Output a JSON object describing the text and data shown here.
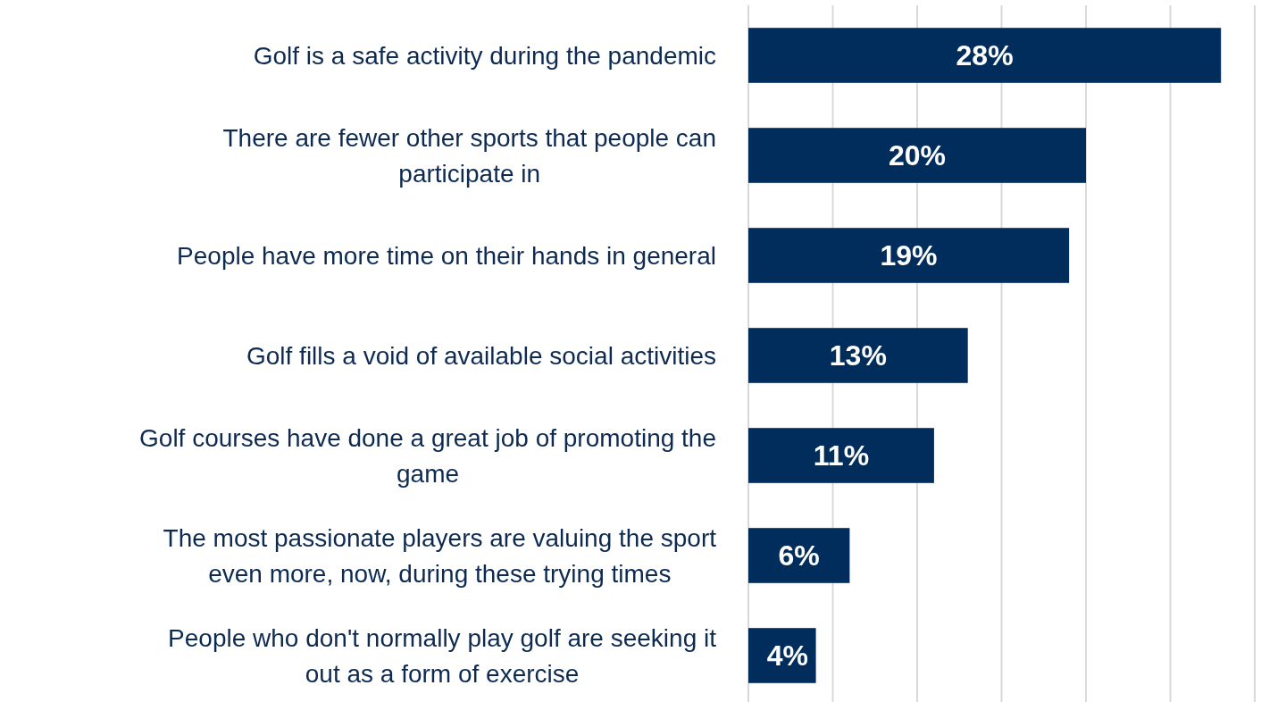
{
  "chart_data": {
    "type": "bar",
    "orientation": "horizontal",
    "categories": [
      "Golf is a safe activity during the pandemic",
      "There are fewer other sports that people can participate in",
      "People have more time on their hands in general",
      "Golf fills a void of available social activities",
      "Golf courses have done a great job of promoting the game",
      "The most passionate players are valuing the sport even more, now, during these trying times",
      "People who don't normally play golf are seeking it out as a form of exercise"
    ],
    "values": [
      28,
      20,
      19,
      13,
      11,
      6,
      4
    ],
    "value_labels": [
      "28%",
      "20%",
      "19%",
      "13%",
      "11%",
      "6%",
      "4%"
    ],
    "color": "#002d5c",
    "xlim": [
      0,
      30
    ],
    "xticks": [
      {
        "value": 0,
        "label": null
      },
      {
        "value": 5,
        "label": null
      },
      {
        "value": 10,
        "label": null
      },
      {
        "value": 15,
        "label": null
      },
      {
        "value": 20,
        "label": null
      },
      {
        "value": 25,
        "label": null
      },
      {
        "value": 30,
        "label": null
      }
    ],
    "grid": "x",
    "tick_labels": "y"
  }
}
